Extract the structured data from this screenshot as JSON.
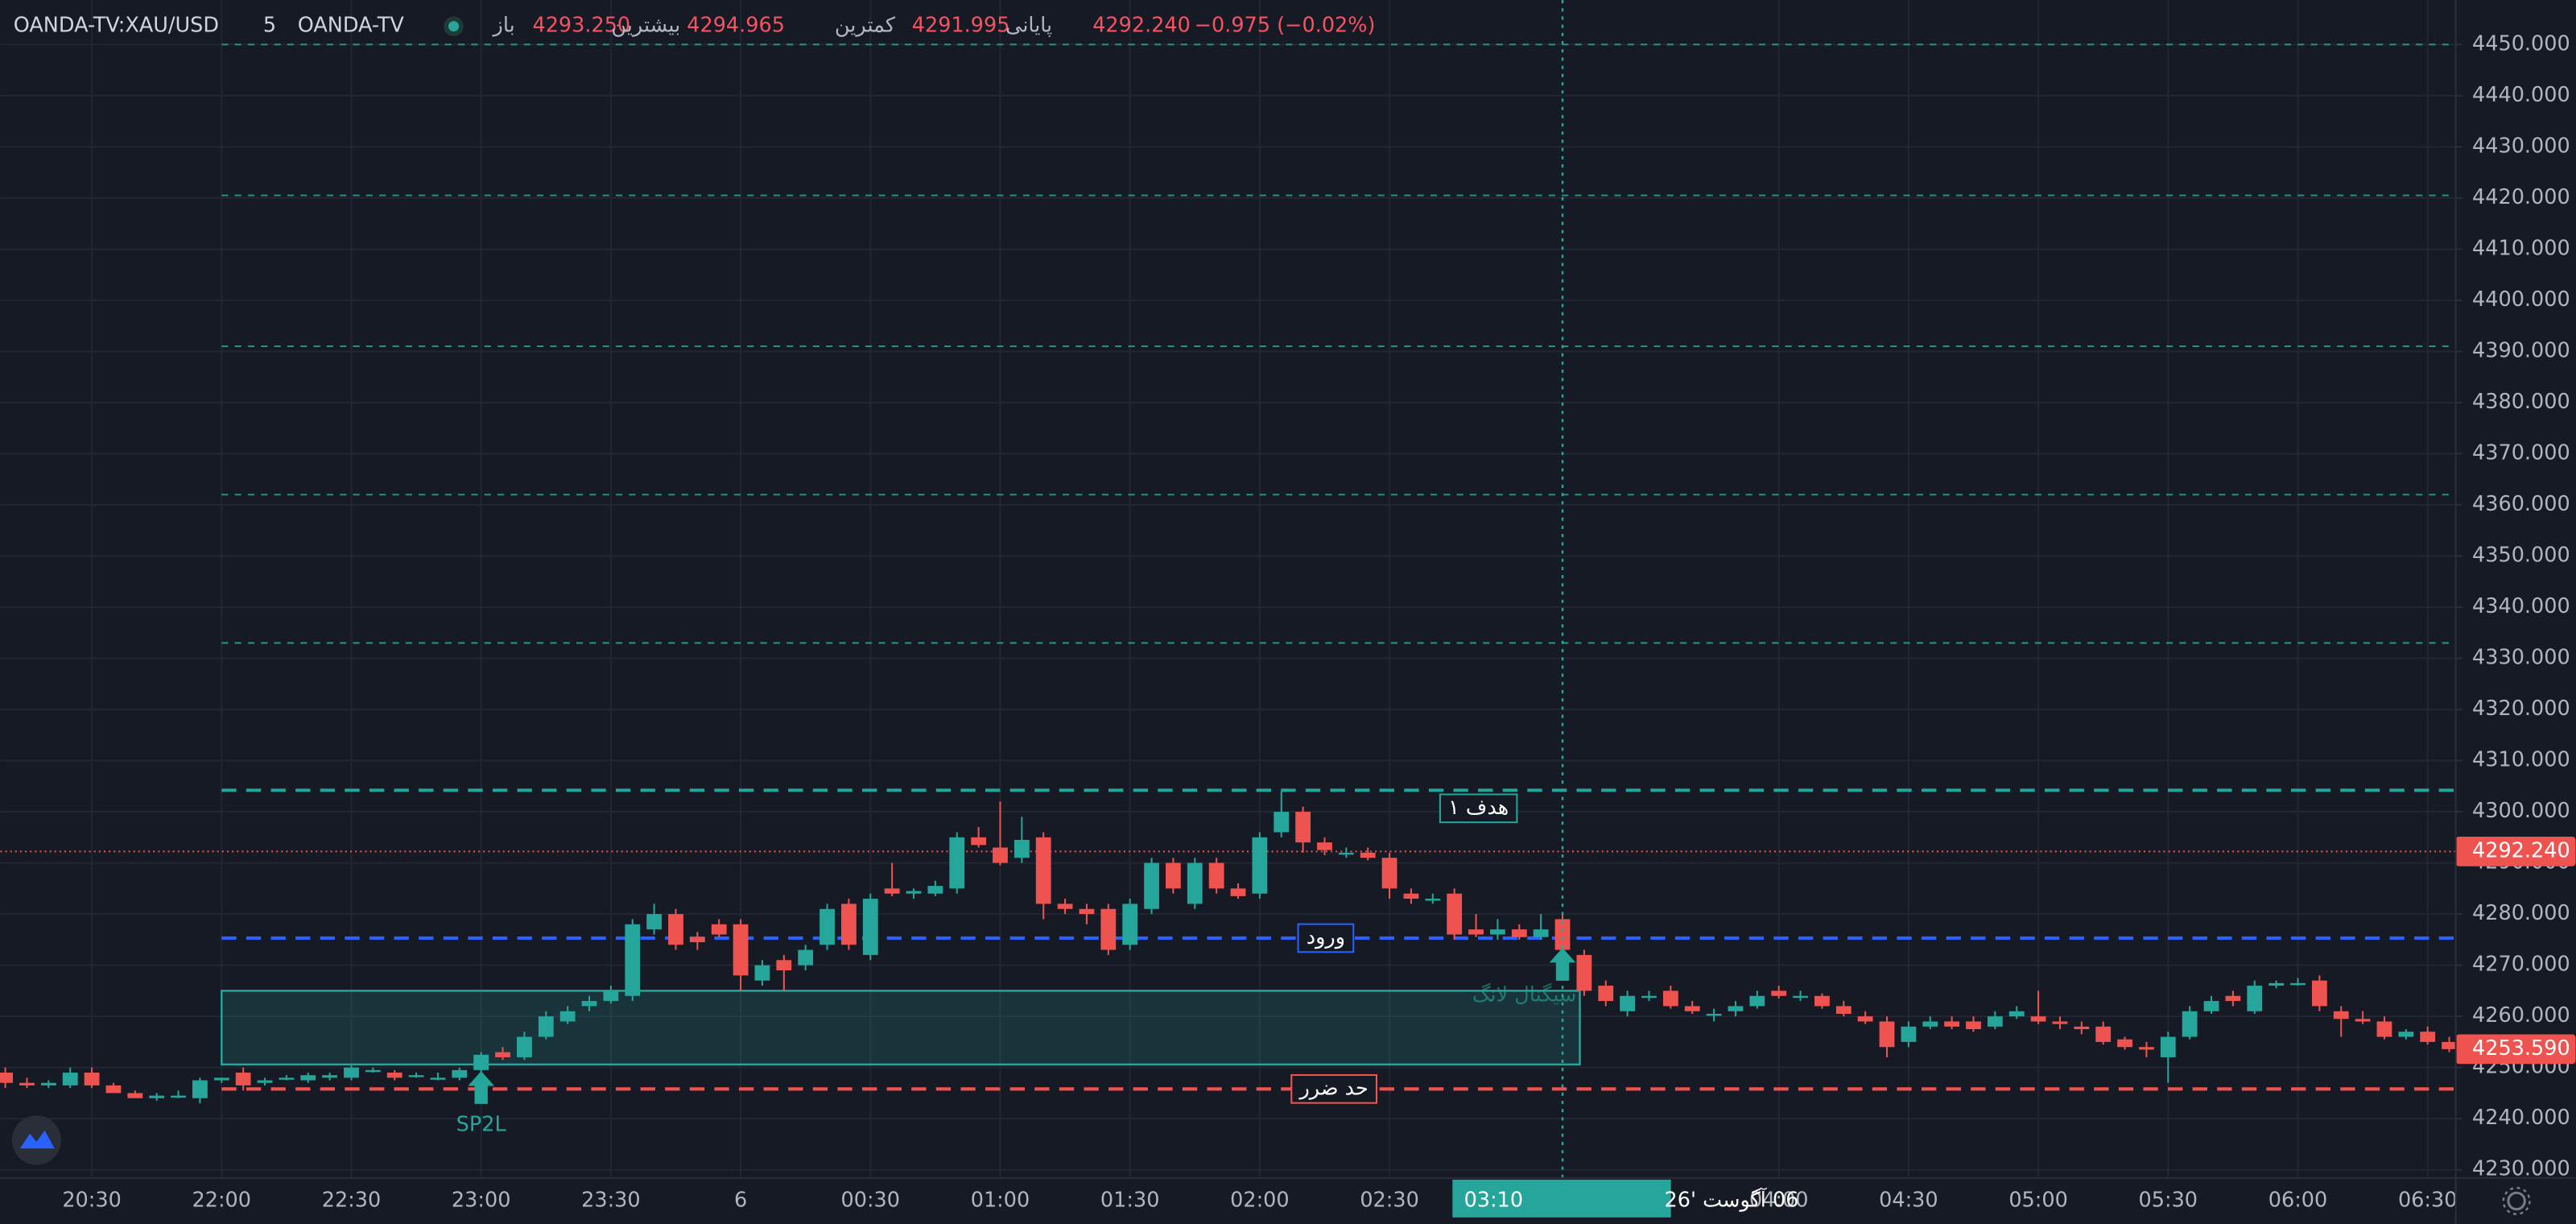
{
  "header": {
    "symbol": "OANDA-TV:XAU/USD",
    "interval": "5",
    "source": "OANDA-TV",
    "open_label": "باز",
    "open": "4293.250",
    "high_label": "بیشترین",
    "high": "4294.965",
    "low_label": "کمترین",
    "low": "4291.995",
    "close_label": "پایانی",
    "close": "4292.240",
    "change": "−0.975 (−0.02%)"
  },
  "chart_data": {
    "type": "candlestick",
    "up_color": "#26a69a",
    "down_color": "#ef5350",
    "ylim": [
      4228.4,
      4458.7
    ],
    "xlim": [
      -0.23,
      113.3
    ],
    "grid": true,
    "yticks": [
      {
        "value": 4230,
        "label": "4230.000"
      },
      {
        "value": 4240,
        "label": "4240.000"
      },
      {
        "value": 4250,
        "label": "4250.000"
      },
      {
        "value": 4260,
        "label": "4260.000"
      },
      {
        "value": 4270,
        "label": "4270.000"
      },
      {
        "value": 4280,
        "label": "4280.000"
      },
      {
        "value": 4290,
        "label": "4290.000"
      },
      {
        "value": 4300,
        "label": "4300.000"
      },
      {
        "value": 4310,
        "label": "4310.000"
      },
      {
        "value": 4320,
        "label": "4320.000"
      },
      {
        "value": 4330,
        "label": "4330.000"
      },
      {
        "value": 4340,
        "label": "4340.000"
      },
      {
        "value": 4350,
        "label": "4350.000"
      },
      {
        "value": 4360,
        "label": "4360.000"
      },
      {
        "value": 4370,
        "label": "4370.000"
      },
      {
        "value": 4380,
        "label": "4380.000"
      },
      {
        "value": 4390,
        "label": "4390.000"
      },
      {
        "value": 4400,
        "label": "4400.000"
      },
      {
        "value": 4410,
        "label": "4410.000"
      },
      {
        "value": 4420,
        "label": "4420.000"
      },
      {
        "value": 4430,
        "label": "4430.000"
      },
      {
        "value": 4440,
        "label": "4440.000"
      },
      {
        "value": 4450,
        "label": "4450.000"
      }
    ],
    "xticks": [
      {
        "value": 4,
        "label": "20:30"
      },
      {
        "value": 10,
        "label": "22:00"
      },
      {
        "value": 16,
        "label": "22:30"
      },
      {
        "value": 22,
        "label": "23:00"
      },
      {
        "value": 28,
        "label": "23:30"
      },
      {
        "value": 34,
        "label": "6"
      },
      {
        "value": 40,
        "label": "00:30"
      },
      {
        "value": 46,
        "label": "01:00"
      },
      {
        "value": 52,
        "label": "01:30"
      },
      {
        "value": 58,
        "label": "02:00"
      },
      {
        "value": 64,
        "label": "02:30"
      },
      {
        "value": 82,
        "label": "04:00"
      },
      {
        "value": 88,
        "label": "04:30"
      },
      {
        "value": 94,
        "label": "05:00"
      },
      {
        "value": 100,
        "label": "05:30"
      },
      {
        "value": 106,
        "label": "06:00"
      },
      {
        "value": 112,
        "label": "06:30"
      }
    ],
    "candles": [
      [
        4249,
        4250,
        4246,
        4247
      ],
      [
        4247,
        4248,
        4246,
        4246.5
      ],
      [
        4246.5,
        4247.5,
        4246,
        4247
      ],
      [
        4246.5,
        4250,
        4246,
        4249
      ],
      [
        4249,
        4250,
        4246,
        4246.5
      ],
      [
        4246.5,
        4247,
        4245,
        4245
      ],
      [
        4245,
        4245.5,
        4244,
        4244
      ],
      [
        4244,
        4245,
        4243.5,
        4244.5
      ],
      [
        4244.5,
        4245.5,
        4244,
        4244.5
      ],
      [
        4244,
        4248,
        4243,
        4247.5
      ],
      [
        4247.5,
        4248,
        4247,
        4248
      ],
      [
        4249,
        4250,
        4245.5,
        4246.5
      ],
      [
        4247,
        4248,
        4246.5,
        4247.5
      ],
      [
        4248,
        4248.5,
        4247.5,
        4248
      ],
      [
        4247.5,
        4249,
        4247,
        4248.5
      ],
      [
        4248,
        4249,
        4247.5,
        4248.5
      ],
      [
        4248,
        4250.5,
        4247.5,
        4250
      ],
      [
        4249.5,
        4250,
        4249,
        4249.5
      ],
      [
        4249,
        4249.5,
        4247.5,
        4248
      ],
      [
        4248.5,
        4249,
        4248,
        4248.5
      ],
      [
        4248,
        4249,
        4247.5,
        4248
      ],
      [
        4248,
        4250,
        4247.5,
        4249.5
      ],
      [
        4249.5,
        4253,
        4249,
        4252.5
      ],
      [
        4253,
        4254,
        4251.5,
        4252
      ],
      [
        4252,
        4257,
        4251.5,
        4256
      ],
      [
        4256,
        4261,
        4255.5,
        4260
      ],
      [
        4259,
        4262,
        4258.5,
        4261
      ],
      [
        4262,
        4264,
        4261,
        4263
      ],
      [
        4263,
        4266,
        4262.5,
        4265
      ],
      [
        4264,
        4279,
        4263,
        4278
      ],
      [
        4277,
        4282,
        4276,
        4280
      ],
      [
        4280,
        4281,
        4273,
        4274
      ],
      [
        4275.5,
        4276.5,
        4273,
        4274.5
      ],
      [
        4278,
        4279,
        4275.5,
        4276
      ],
      [
        4278,
        4279,
        4265,
        4268
      ],
      [
        4267,
        4271,
        4266,
        4270
      ],
      [
        4271,
        4272,
        4265,
        4269
      ],
      [
        4270,
        4274,
        4269,
        4273
      ],
      [
        4274,
        4282,
        4273,
        4281
      ],
      [
        4282,
        4283,
        4273,
        4274
      ],
      [
        4272,
        4284,
        4271,
        4283
      ],
      [
        4285,
        4290,
        4283.5,
        4284
      ],
      [
        4284,
        4285,
        4283,
        4284.5
      ],
      [
        4284,
        4286.5,
        4283.5,
        4285.5
      ],
      [
        4285,
        4296,
        4284,
        4295
      ],
      [
        4295,
        4297,
        4293,
        4293.5
      ],
      [
        4293,
        4302,
        4289.5,
        4290
      ],
      [
        4291,
        4299,
        4290,
        4294.5
      ],
      [
        4295,
        4296,
        4279,
        4282
      ],
      [
        4282,
        4283,
        4280,
        4281
      ],
      [
        4281,
        4282,
        4278,
        4280
      ],
      [
        4281,
        4282,
        4272,
        4273
      ],
      [
        4274,
        4283,
        4273,
        4282
      ],
      [
        4281,
        4291,
        4280,
        4290
      ],
      [
        4290,
        4291,
        4284,
        4285
      ],
      [
        4282,
        4291,
        4281,
        4290
      ],
      [
        4290,
        4291,
        4284,
        4285
      ],
      [
        4285,
        4286,
        4283,
        4283.5
      ],
      [
        4284,
        4296,
        4283,
        4295
      ],
      [
        4296,
        4304,
        4295,
        4300
      ],
      [
        4300,
        4301,
        4292,
        4294
      ],
      [
        4294,
        4295,
        4291.5,
        4292.5
      ],
      [
        4292,
        4293,
        4291,
        4292
      ],
      [
        4292,
        4293,
        4290.5,
        4291
      ],
      [
        4291,
        4292,
        4283,
        4285
      ],
      [
        4284,
        4285,
        4282,
        4283
      ],
      [
        4283,
        4284,
        4282,
        4283
      ],
      [
        4284,
        4285,
        4275,
        4276
      ],
      [
        4277,
        4280,
        4275.5,
        4276
      ],
      [
        4276,
        4279,
        4275,
        4277
      ],
      [
        4277,
        4278,
        4275,
        4275.5
      ],
      [
        4275.5,
        4280,
        4275,
        4277
      ],
      [
        4279,
        4280,
        4272,
        4273
      ],
      [
        4272,
        4273,
        4264,
        4265
      ],
      [
        4266,
        4267,
        4262,
        4263
      ],
      [
        4261,
        4265,
        4260,
        4264
      ],
      [
        4264,
        4265,
        4263,
        4264
      ],
      [
        4265,
        4266,
        4261.5,
        4262
      ],
      [
        4262,
        4263,
        4260.5,
        4261
      ],
      [
        4260.5,
        4261.5,
        4259,
        4260.5
      ],
      [
        4261,
        4263,
        4260,
        4262
      ],
      [
        4262,
        4265,
        4261.5,
        4264
      ],
      [
        4265,
        4266,
        4263.5,
        4264
      ],
      [
        4264,
        4265,
        4263,
        4264
      ],
      [
        4264,
        4264.5,
        4261.5,
        4262
      ],
      [
        4262,
        4263,
        4260,
        4260.5
      ],
      [
        4260,
        4261,
        4258.5,
        4259
      ],
      [
        4259,
        4260,
        4252,
        4254
      ],
      [
        4255,
        4259,
        4254,
        4258
      ],
      [
        4258,
        4260,
        4257.5,
        4259
      ],
      [
        4259,
        4260,
        4257.5,
        4258
      ],
      [
        4259,
        4260,
        4257,
        4257.5
      ],
      [
        4258,
        4261,
        4257.5,
        4260
      ],
      [
        4260,
        4262,
        4259.5,
        4261
      ],
      [
        4260,
        4265,
        4258.5,
        4259
      ],
      [
        4259,
        4260,
        4257.5,
        4258.5
      ],
      [
        4258,
        4259,
        4256.5,
        4257.5
      ],
      [
        4258,
        4259,
        4254.5,
        4255
      ],
      [
        4255.5,
        4256,
        4253.5,
        4254
      ],
      [
        4254,
        4255,
        4252,
        4253.5
      ],
      [
        4252,
        4257,
        4247,
        4256
      ],
      [
        4256,
        4262,
        4255.5,
        4261
      ],
      [
        4261,
        4264,
        4260.5,
        4263
      ],
      [
        4264,
        4265,
        4262,
        4263
      ],
      [
        4261,
        4267,
        4260.5,
        4266
      ],
      [
        4266,
        4267,
        4265.5,
        4266.5
      ],
      [
        4266.5,
        4267.5,
        4266,
        4266.5
      ],
      [
        4267,
        4268,
        4261,
        4262
      ],
      [
        4261,
        4262,
        4256,
        4259.5
      ],
      [
        4259.5,
        4261,
        4258.5,
        4259
      ],
      [
        4259,
        4260,
        4255.5,
        4256
      ],
      [
        4256,
        4257.5,
        4255.5,
        4257
      ],
      [
        4257,
        4258,
        4254.5,
        4255
      ],
      [
        4255,
        4256,
        4253,
        4253.59
      ]
    ],
    "zone": {
      "x": [
        10,
        72.8
      ],
      "y": [
        4250.6,
        4265
      ],
      "color": "#26a69a",
      "label": "سیگنال لانگ"
    },
    "levels": [
      {
        "value": 4450,
        "color": "#26a69a",
        "style": "thin"
      },
      {
        "value": 4420.5,
        "color": "#26a69a",
        "style": "thin"
      },
      {
        "value": 4391,
        "color": "#26a69a",
        "style": "thin"
      },
      {
        "value": 4362,
        "color": "#26a69a",
        "style": "thin"
      },
      {
        "value": 4333,
        "color": "#26a69a",
        "style": "thin"
      },
      {
        "value": 4304.2,
        "color": "#26a69a",
        "style": "thick",
        "label": "هدف ۱"
      },
      {
        "value": 4275.3,
        "color": "#2962ff",
        "style": "thick",
        "label": "ورود"
      },
      {
        "value": 4245.8,
        "color": "#ef5350",
        "style": "thick",
        "label": "حد ضرر"
      }
    ],
    "current_price": {
      "value": 4292.24,
      "label": "4292.240"
    },
    "last_price": {
      "value": 4253.59,
      "label": "4253.590"
    },
    "signals": [
      {
        "x": 22,
        "y": 4249.3,
        "label": "SP2L"
      },
      {
        "x": 72,
        "y": 4273.4
      }
    ],
    "crosshair": {
      "x": 72,
      "time": "03:10",
      "date": "06 آگوست '26"
    }
  }
}
